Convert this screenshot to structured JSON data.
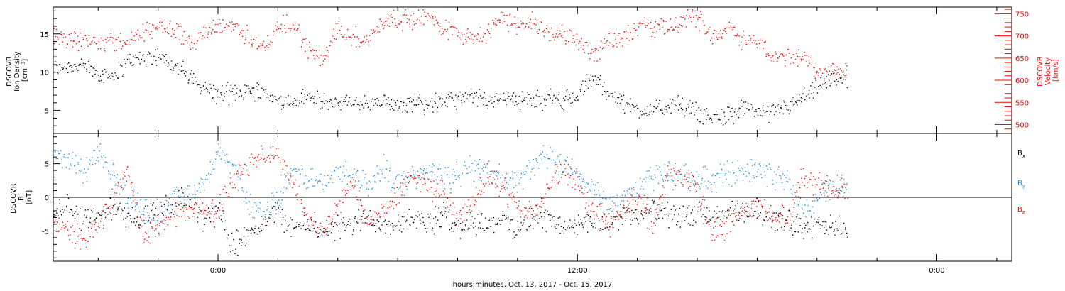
{
  "chart_data": [
    {
      "type": "scatter",
      "panel": "plasma",
      "xlabel": "hours:minutes, Oct. 13, 2017 - Oct. 15, 2017",
      "x_ticks": [
        "0:00",
        "12:00",
        "0:00"
      ],
      "x_unit": "hours since Oct. 14, 2017 00:00",
      "xlim": [
        -5.5,
        26.5
      ],
      "ylabel": [
        "DSCOVR",
        "Ion Density",
        "[cm⁻³]"
      ],
      "ylim": [
        2,
        18.5
      ],
      "y_ticks": [
        5,
        10,
        15
      ],
      "y2label": [
        "DSCOVR",
        "Velocity",
        "[km/s]"
      ],
      "y2lim": [
        480,
        765
      ],
      "y2_ticks": [
        500,
        550,
        600,
        650,
        700,
        750
      ],
      "series": [
        {
          "name": "Ion Density",
          "color": "#000000",
          "axis": "left",
          "x": [
            -5.5,
            -5.0,
            -4.5,
            -4.0,
            -3.5,
            -3.0,
            -2.5,
            -2.0,
            -1.5,
            -1.0,
            -0.5,
            0.0,
            0.5,
            1.0,
            1.5,
            2.0,
            2.5,
            3.0,
            3.5,
            4.0,
            4.5,
            5.0,
            5.5,
            6.0,
            6.5,
            7.0,
            7.5,
            8.0,
            8.5,
            9.0,
            9.5,
            10.0,
            10.5,
            11.0,
            11.5,
            12.0,
            12.5,
            13.0,
            13.5,
            14.0,
            14.5,
            15.0,
            15.5,
            16.0,
            16.5,
            17.0,
            17.5,
            18.0,
            18.5,
            19.0,
            19.5,
            20.0,
            20.5,
            21.0
          ],
          "y": [
            10.5,
            11.0,
            10.8,
            10.0,
            9.6,
            11.5,
            12.0,
            12.3,
            11.0,
            9.5,
            8.0,
            7.2,
            7.3,
            7.8,
            7.6,
            6.2,
            6.1,
            6.8,
            6.0,
            6.2,
            6.0,
            5.8,
            5.9,
            6.0,
            6.2,
            5.9,
            6.3,
            6.5,
            6.8,
            6.2,
            6.9,
            6.5,
            6.4,
            6.6,
            6.5,
            6.8,
            9.5,
            7.5,
            6.0,
            5.2,
            5.0,
            5.6,
            5.8,
            4.8,
            4.2,
            4.5,
            5.0,
            5.2,
            4.8,
            5.5,
            6.5,
            7.8,
            9.5,
            9.2
          ]
        },
        {
          "name": "Velocity",
          "color": "#ff0000",
          "axis": "right",
          "x": [
            -5.5,
            -5.0,
            -4.5,
            -4.0,
            -3.5,
            -3.0,
            -2.5,
            -2.0,
            -1.5,
            -1.0,
            -0.5,
            0.0,
            0.5,
            1.0,
            1.5,
            2.0,
            2.5,
            3.0,
            3.5,
            4.0,
            4.5,
            5.0,
            5.5,
            6.0,
            6.5,
            7.0,
            7.5,
            8.0,
            8.5,
            9.0,
            9.5,
            10.0,
            10.5,
            11.0,
            11.5,
            12.0,
            12.5,
            13.0,
            13.5,
            14.0,
            14.5,
            15.0,
            15.5,
            16.0,
            16.5,
            17.0,
            17.5,
            18.0,
            18.5,
            19.0,
            19.5,
            20.0,
            20.5,
            21.0
          ],
          "y": [
            695,
            688,
            690,
            692,
            685,
            690,
            705,
            730,
            715,
            690,
            700,
            720,
            725,
            700,
            670,
            720,
            725,
            675,
            640,
            725,
            700,
            690,
            735,
            740,
            735,
            745,
            720,
            710,
            700,
            705,
            745,
            720,
            735,
            710,
            700,
            690,
            660,
            690,
            700,
            725,
            720,
            715,
            735,
            745,
            700,
            720,
            695,
            690,
            650,
            660,
            650,
            620,
            625,
            615
          ]
        }
      ]
    },
    {
      "type": "scatter",
      "panel": "magnetic field",
      "xlabel": "hours:minutes, Oct. 13, 2017 - Oct. 15, 2017",
      "xlim": [
        -5.5,
        26.5
      ],
      "ylabel": [
        "DSCOVR",
        "B",
        "[nT]"
      ],
      "ylim": [
        -9.5,
        9.5
      ],
      "y_ticks": [
        -5,
        0,
        5
      ],
      "zero_line": true,
      "legend": [
        "B",
        "B",
        "B"
      ],
      "legend_sub": [
        "x",
        "y",
        "z"
      ],
      "legend_position": "right",
      "series": [
        {
          "name": "Bx",
          "color": "#000000",
          "x": [
            -5.5,
            -5.0,
            -4.5,
            -4.0,
            -3.5,
            -3.0,
            -2.5,
            -2.0,
            -1.5,
            -1.0,
            -0.5,
            0.0,
            0.5,
            1.0,
            1.5,
            2.0,
            2.5,
            3.0,
            3.5,
            4.0,
            4.5,
            5.0,
            5.5,
            6.0,
            6.5,
            7.0,
            7.5,
            8.0,
            8.5,
            9.0,
            9.5,
            10.0,
            10.5,
            11.0,
            11.5,
            12.0,
            12.5,
            13.0,
            13.5,
            14.0,
            14.5,
            15.0,
            15.5,
            16.0,
            16.5,
            17.0,
            17.5,
            18.0,
            18.5,
            19.0,
            19.5,
            20.0,
            20.5,
            21.0
          ],
          "y": [
            -2.0,
            -1.5,
            -3.0,
            -3.0,
            -1.5,
            -2.5,
            -3.5,
            -2.0,
            -1.0,
            -0.5,
            -3.0,
            -2.0,
            -7.0,
            -5.0,
            -4.0,
            -2.0,
            -4.5,
            -4.0,
            -5.0,
            -4.5,
            -4.0,
            -3.0,
            -4.0,
            -3.5,
            -3.0,
            -4.0,
            -2.5,
            -4.5,
            -3.5,
            -4.0,
            -3.0,
            -4.5,
            -2.5,
            -3.0,
            -4.5,
            -4.0,
            -3.5,
            -4.0,
            -2.5,
            -3.0,
            -2.0,
            -2.5,
            -3.0,
            -2.0,
            -3.5,
            -2.0,
            -2.5,
            -2.0,
            -3.0,
            -3.5,
            -4.0,
            -4.2,
            -4.5,
            -4.6
          ]
        },
        {
          "name": "By",
          "color": "#1f8fe0",
          "x": [
            -5.5,
            -5.0,
            -4.5,
            -4.0,
            -3.5,
            -3.0,
            -2.5,
            -2.0,
            -1.5,
            -1.0,
            -0.5,
            0.0,
            0.5,
            1.0,
            1.5,
            2.0,
            2.5,
            3.0,
            3.5,
            4.0,
            4.5,
            5.0,
            5.5,
            6.0,
            6.5,
            7.0,
            7.5,
            8.0,
            8.5,
            9.0,
            9.5,
            10.0,
            10.5,
            11.0,
            11.5,
            12.0,
            12.5,
            13.0,
            13.5,
            14.0,
            14.5,
            15.0,
            15.5,
            16.0,
            16.5,
            17.0,
            17.5,
            18.0,
            18.5,
            19.0,
            19.5,
            20.0,
            20.5,
            21.0
          ],
          "y": [
            6.5,
            5.5,
            4.0,
            6.0,
            4.0,
            0.0,
            -1.5,
            -4.0,
            1.0,
            0.0,
            1.5,
            6.5,
            5.0,
            -1.0,
            -2.0,
            -0.5,
            4.0,
            3.0,
            2.0,
            4.0,
            3.5,
            2.0,
            4.5,
            2.0,
            3.0,
            4.5,
            3.0,
            3.5,
            4.5,
            4.0,
            3.0,
            2.5,
            5.0,
            6.0,
            4.5,
            3.5,
            1.5,
            -1.0,
            0.5,
            1.5,
            3.0,
            4.0,
            3.5,
            2.5,
            3.0,
            3.5,
            4.5,
            4.0,
            3.5,
            2.5,
            -2.0,
            -0.5,
            2.0,
            1.0
          ]
        },
        {
          "name": "Bz",
          "color": "#ff0000",
          "x": [
            -5.5,
            -5.0,
            -4.5,
            -4.0,
            -3.5,
            -3.0,
            -2.5,
            -2.0,
            -1.5,
            -1.0,
            -0.5,
            0.0,
            0.5,
            1.0,
            1.5,
            2.0,
            2.5,
            3.0,
            3.5,
            4.0,
            4.5,
            5.0,
            5.5,
            6.0,
            6.5,
            7.0,
            7.5,
            8.0,
            8.5,
            9.0,
            9.5,
            10.0,
            10.5,
            11.0,
            11.5,
            12.0,
            12.5,
            13.0,
            13.5,
            14.0,
            14.5,
            15.0,
            15.5,
            16.0,
            16.5,
            17.0,
            17.5,
            18.0,
            18.5,
            19.0,
            19.5,
            20.0,
            20.5,
            21.0
          ],
          "y": [
            -3.0,
            -5.0,
            -6.5,
            -4.0,
            0.5,
            4.0,
            -6.0,
            -4.0,
            -2.5,
            -2.0,
            -1.5,
            -2.0,
            3.0,
            5.0,
            6.5,
            6.0,
            2.0,
            -3.0,
            -5.5,
            -1.0,
            2.0,
            -4.0,
            -2.0,
            0.5,
            3.0,
            2.0,
            1.0,
            -3.0,
            -1.0,
            3.0,
            1.5,
            -1.5,
            -3.0,
            2.0,
            4.0,
            2.0,
            -2.0,
            -4.0,
            -2.5,
            0.5,
            -3.5,
            3.0,
            3.5,
            1.0,
            -5.0,
            -4.0,
            -2.0,
            -1.0,
            -2.5,
            -3.0,
            3.0,
            2.5,
            1.5,
            1.0
          ]
        }
      ]
    }
  ]
}
